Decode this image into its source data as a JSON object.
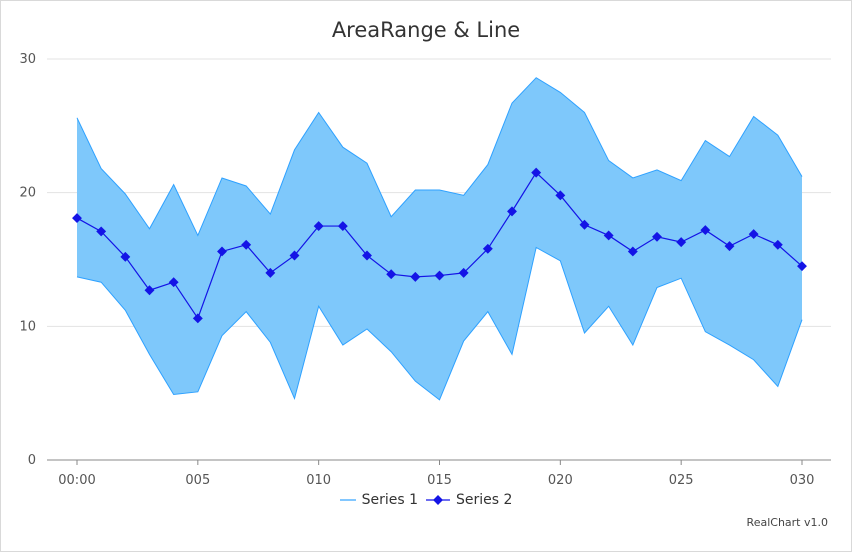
{
  "chart_data": {
    "type": "area",
    "title": "AreaRange & Line",
    "x_tick_labels": [
      "00:00",
      "005",
      "010",
      "015",
      "020",
      "025",
      "030"
    ],
    "x_tick_positions": [
      0,
      5,
      10,
      15,
      20,
      25,
      30
    ],
    "y_ticks": [
      0,
      10,
      20,
      30
    ],
    "xlim": [
      0,
      30
    ],
    "ylim": [
      0,
      30
    ],
    "grid": true,
    "legend_position": "bottom",
    "series": [
      {
        "name": "Series 1",
        "kind": "arearange",
        "color": "#2ea1ff",
        "fill": "#7ec8fb",
        "low": [
          13.7,
          13.3,
          11.2,
          7.9,
          4.9,
          5.1,
          9.3,
          11.1,
          8.8,
          4.6,
          11.5,
          8.6,
          9.8,
          8.1,
          5.9,
          4.5,
          8.9,
          11.1,
          7.9,
          15.9,
          14.9,
          9.5,
          11.5,
          8.6,
          12.9,
          13.6,
          9.6,
          8.6,
          7.5,
          5.5,
          10.5
        ],
        "high": [
          25.6,
          21.8,
          19.9,
          17.3,
          20.6,
          16.8,
          21.1,
          20.5,
          18.4,
          23.2,
          26.0,
          23.4,
          22.2,
          18.2,
          20.2,
          20.2,
          19.8,
          22.1,
          26.7,
          28.6,
          27.5,
          26.0,
          22.4,
          21.1,
          21.7,
          20.9,
          23.9,
          22.7,
          25.7,
          24.3,
          21.2
        ]
      },
      {
        "name": "Series 2",
        "kind": "line",
        "color": "#1414e6",
        "values": [
          18.1,
          17.1,
          15.2,
          12.7,
          13.3,
          10.6,
          15.6,
          16.1,
          14.0,
          15.3,
          17.5,
          17.5,
          15.3,
          13.9,
          13.7,
          13.8,
          14.0,
          15.8,
          18.6,
          21.5,
          19.8,
          17.6,
          16.8,
          15.6,
          16.7,
          16.3,
          17.2,
          16.0,
          16.9,
          16.1,
          14.5
        ]
      }
    ]
  },
  "credits": "RealChart v1.0"
}
